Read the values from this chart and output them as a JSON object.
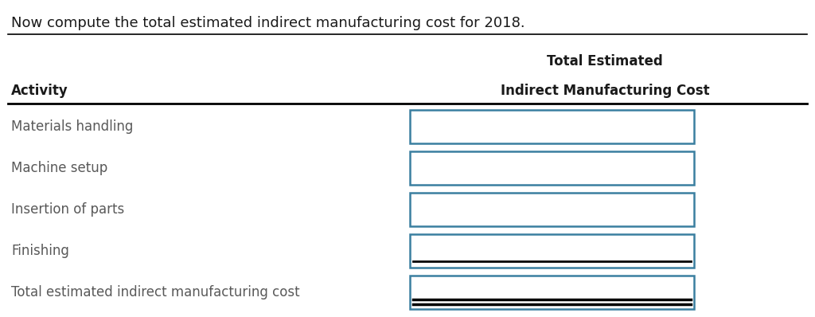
{
  "title": "Now compute the total estimated indirect manufacturing cost for 2018.",
  "col1_header": "Activity",
  "col2_header_line1": "Total Estimated",
  "col2_header_line2": "Indirect Manufacturing Cost",
  "rows": [
    "Materials handling",
    "Machine setup",
    "Insertion of parts",
    "Finishing",
    "Total estimated indirect manufacturing cost"
  ],
  "bg_color": "#ffffff",
  "text_color": "#595959",
  "header_color": "#1a1a1a",
  "box_border_color": "#3a7fa0",
  "line_color": "#000000",
  "title_fontsize": 13,
  "header_fontsize": 12,
  "row_fontsize": 12,
  "fig_width": 10.24,
  "fig_height": 3.98,
  "dpi": 100
}
